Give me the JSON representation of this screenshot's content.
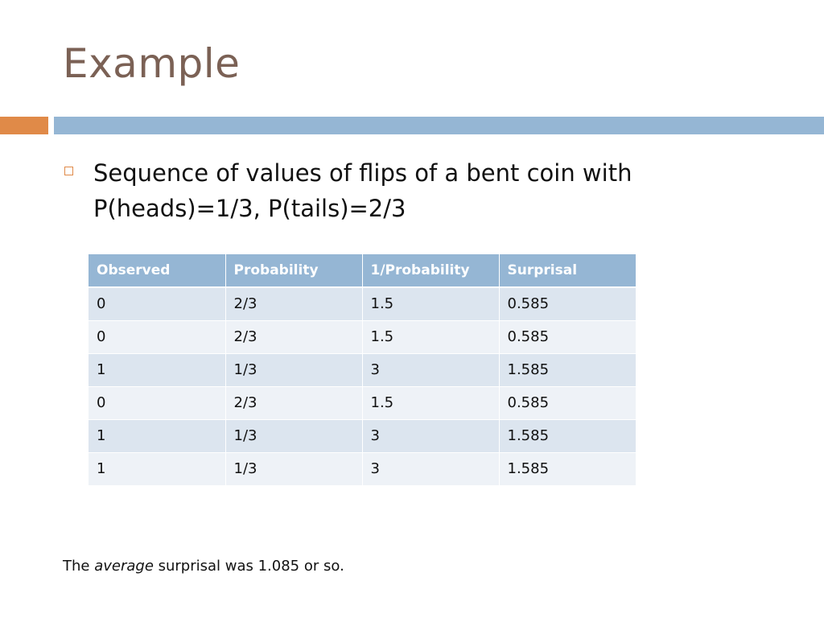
{
  "slide": {
    "title": "Example"
  },
  "bullet": {
    "line1": "Sequence of values of flips of a bent coin with",
    "line2": "P(heads)=1/3, P(tails)=2/3"
  },
  "table": {
    "headers": [
      "Observed",
      "Probability",
      "1/Probability",
      "Surprisal"
    ],
    "rows": [
      [
        "0",
        "2/3",
        "1.5",
        "0.585"
      ],
      [
        "0",
        "2/3",
        "1.5",
        "0.585"
      ],
      [
        "1",
        "1/3",
        "3",
        "1.585"
      ],
      [
        "0",
        "2/3",
        "1.5",
        "0.585"
      ],
      [
        "1",
        "1/3",
        "3",
        "1.585"
      ],
      [
        "1",
        "1/3",
        "3",
        "1.585"
      ]
    ]
  },
  "footer": {
    "prefix": "The ",
    "emphasis": "average",
    "suffix": " surprisal was 1.085 or so."
  },
  "colors": {
    "title": "#7b6155",
    "accent_orange": "#e08a48",
    "accent_blue": "#95b6d4",
    "row_dark": "#dce5ef",
    "row_light": "#eef2f7"
  }
}
